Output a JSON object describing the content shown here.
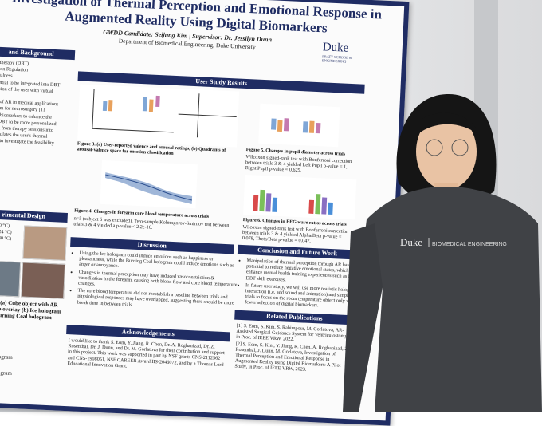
{
  "poster": {
    "title": "Investigation of Thermal Perception and Emotional Response in Augmented Reality Using Digital Biomarkers",
    "candidate": "GWDD Candidate: Seijung Kim | Supervisor: Dr. Jessilyn Dunn",
    "department": "Department of Biomedical Engineering, Duke University",
    "logo": {
      "name": "Duke",
      "school": "PRATT SCHOOL of ENGINEERING"
    },
    "background": {
      "header": "and Background",
      "lines": [
        "avior therapy (DBT)",
        "Emotion Regulation",
        "Mindfulness",
        "e potential to be integrated into DBT",
        "nteraction of the user with virtual",
        "ment.",
        "ments of AR in medical applications",
        "e system for neurosurgery [1].",
        "digital biomarkers to enhance the",
        "ses in DBT to be more personalized",
        "earning from therapy sessions into",
        "t manipulates the user's thermal",
        "ponses to investigate the feasibility",
        "[2]."
      ]
    },
    "design": {
      "header": "rimental Design",
      "labels": [
        "Cold: (10 °C)",
        "Room: (24 °C)",
        "Warm: (40 °C)"
      ],
      "caption": "Figure 2. (a) Cube object with AR marker to overlay (b) Ice hologram and (c) Burning Coal hologram",
      "legend": [
        "ogram",
        "g Coal hologram",
        "ogram",
        "g Coal hologram"
      ]
    },
    "results": {
      "header": "User Study Results",
      "fig3": "Figure 3. (a) User-reported valence and arousal ratings, (b) Quadrants of arousal-valence space for emotion classification",
      "fig4": "Figure 4. Changes in forearm core blood temperature across trials",
      "fig4_note": "n=5 (subject 6 was excluded). Two-sample Kolmogorov-Smirnov test between trials 3 & 4 yielded a p-value < 2.2e-16.",
      "fig5": "Figure 5. Changes in pupil diameter across trials",
      "fig5_note": "Wilcoxon signed-rank test with Bonferroni correction between trials 3 & 4 yielded Left Pupil p-value = 1, Right Pupil p-value = 0.625.",
      "fig6": "Figure 6. Changes in EEG wave ratios across trials",
      "fig6_note": "Wilcoxon signed-rank test with Bonferroni correction between trials 3 & 4 yielded Alpha/Beta p-value = 0.078, Theta/Beta p-value = 0.047."
    },
    "discussion": {
      "header": "Discussion",
      "bullets": [
        "Using the Ice hologram could induce emotions such as happiness or pleasantness, while the Burning Coal hologram could induce emotions such as anger or annoyance.",
        "Changes in thermal perception may have induced vasoconstriction & vasodilation in the forearm, causing both blood flow and core blood temperature changes.",
        "The core blood temperature did not reestablish a baseline between trials and physiological responses may have overlapped, suggesting there should be more break time in between trials."
      ]
    },
    "conclusion": {
      "header": "Conclusion and Future Work",
      "bullets": [
        "Manipulation of thermal perception through AR has the potential to reduce negative emotional states, which may enhance mental health training experiences such as in DBT skill exercises.",
        "In future user study, we will use more realistic hologram interaction (i.e. add sound and animation) and simplify trials to focus on the room temperature object only with fewer selection of digital biomarkers."
      ]
    },
    "acknowledgements": {
      "header": "Acknowledgements",
      "text": "I would like to thank S. Eom, Y. Jiang, R. Chen, Dr. A. Roghanizad, Dr. Z. Rosenthal, Dr. J. Dunn, and Dr. M. Gorlatova for their contribution and support in this project. This work was supported in part by NSF grants CNS-2112562 and CNS-1908051, NSF CAREER Award IIS-2046072, and by a Thomas Lord Educational Innovation Grant."
    },
    "publications": {
      "header": "Related Publications",
      "items": [
        "[1] S. Eom, S. Kim, S. Rahimpour, M. Gorlatova, AR-Assisted Surgical Guidance System for Ventriculostomy, in Proc. of IEEE VRW, 2022.",
        "[2] S. Eom, S. Kim, Y. Jiang, R. Chen, A. Roghanizad, Z. Rosenthal, J. Dunn, M. Gorlatova, Investigation of Thermal Perception and Emotional Response in Augmented Reality using Digital Biomarkers: A Pilot Study, in Proc. of IEEE VRW, 2023."
      ]
    }
  },
  "shirt": {
    "brand": "Duke",
    "dept": "BIOMEDICAL ENGINEERING"
  }
}
